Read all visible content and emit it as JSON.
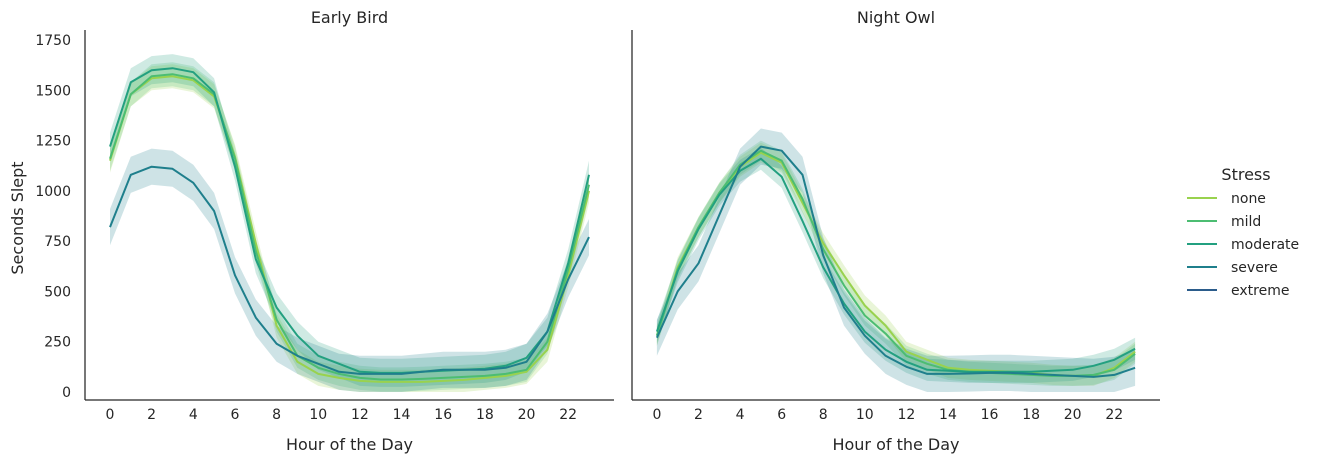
{
  "chart_data": {
    "type": "line",
    "ylabel": "Seconds Slept",
    "xlabel": "Hour of the Day",
    "xlim": [
      -1.2,
      24.2
    ],
    "ylim": [
      -40,
      1800
    ],
    "xticks": [
      "0",
      "2",
      "4",
      "6",
      "8",
      "10",
      "12",
      "14",
      "16",
      "18",
      "20",
      "22"
    ],
    "yticks": [
      "0",
      "250",
      "500",
      "750",
      "1000",
      "1250",
      "1500",
      "1750"
    ],
    "legend": {
      "title": "Stress",
      "placement": "right"
    },
    "colors": {
      "none": "#99d24e",
      "mild": "#4cbd72",
      "moderate": "#23a080",
      "severe": "#1f7f8c",
      "extreme": "#2b5c8b"
    },
    "panels": [
      {
        "title": "Early Bird",
        "series": [
          {
            "name": "none",
            "values": [
              1150,
              1480,
              1560,
              1570,
              1550,
              1470,
              1170,
              740,
              330,
              150,
              90,
              70,
              55,
              50,
              50,
              50,
              55,
              60,
              70,
              80,
              100,
              210,
              580,
              1000
            ],
            "band": 60
          },
          {
            "name": "mild",
            "values": [
              1160,
              1480,
              1570,
              1580,
              1560,
              1480,
              1160,
              700,
              360,
              180,
              120,
              90,
              70,
              62,
              62,
              65,
              70,
              75,
              80,
              90,
              110,
              250,
              610,
              1030
            ],
            "band": 60
          },
          {
            "name": "moderate",
            "values": [
              1220,
              1540,
              1600,
              1610,
              1590,
              1490,
              1120,
              660,
              420,
              280,
              180,
              140,
              100,
              95,
              95,
              100,
              105,
              110,
              115,
              130,
              170,
              300,
              640,
              1080
            ],
            "band": 70
          },
          {
            "name": "severe",
            "values": [
              820,
              1080,
              1120,
              1110,
              1040,
              900,
              580,
              370,
              240,
              180,
              140,
              100,
              90,
              90,
              90,
              100,
              110,
              110,
              110,
              120,
              150,
              300,
              560,
              770
            ],
            "band": 90
          }
        ]
      },
      {
        "title": "Night Owl",
        "series": [
          {
            "name": "none",
            "values": [
              280,
              620,
              820,
              990,
              1120,
              1190,
              1140,
              940,
              740,
              580,
              430,
              330,
              200,
              160,
              120,
              110,
              105,
              100,
              95,
              85,
              80,
              80,
              120,
              200
            ],
            "band": 50
          },
          {
            "name": "mild",
            "values": [
              280,
              610,
              820,
              990,
              1130,
              1200,
              1150,
              960,
              710,
              530,
              380,
              290,
              180,
              140,
              110,
              100,
              95,
              90,
              85,
              80,
              80,
              85,
              110,
              190
            ],
            "band": 50
          },
          {
            "name": "moderate",
            "values": [
              300,
              600,
              810,
              980,
              1100,
              1160,
              1070,
              850,
              620,
              440,
              300,
              210,
              150,
              110,
              105,
              100,
              100,
              100,
              100,
              105,
              110,
              130,
              160,
              215
            ],
            "band": 55
          },
          {
            "name": "severe",
            "values": [
              270,
              500,
              640,
              880,
              1120,
              1220,
              1200,
              1080,
              680,
              420,
              280,
              180,
              125,
              90,
              90,
              92,
              95,
              95,
              90,
              85,
              80,
              75,
              85,
              120
            ],
            "band": 90
          }
        ]
      }
    ]
  }
}
